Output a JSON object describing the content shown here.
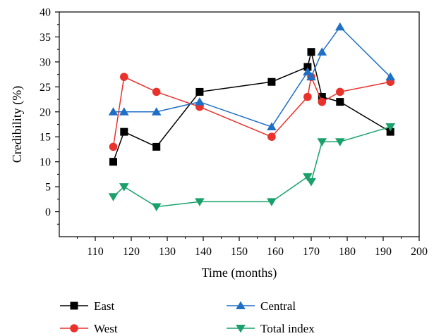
{
  "chart_data": {
    "type": "line",
    "xlabel": "Time (months)",
    "ylabel": "Credibility (%)",
    "xlim": [
      100,
      200
    ],
    "ylim": [
      -5,
      40
    ],
    "x_ticks": [
      110,
      120,
      130,
      140,
      150,
      160,
      170,
      180,
      190,
      200
    ],
    "y_ticks": [
      0,
      5,
      10,
      15,
      20,
      25,
      30,
      35,
      40
    ],
    "x_tick_labels": [
      "110",
      "120",
      "130",
      "140",
      "150",
      "160",
      "170",
      "180",
      "190",
      "200"
    ],
    "y_tick_labels": [
      "0",
      "5",
      "10",
      "15",
      "20",
      "25",
      "30",
      "35",
      "40"
    ],
    "grid": false,
    "legend_position": "below",
    "series": [
      {
        "name": "East",
        "color": "#000000",
        "marker": "square",
        "x": [
          115,
          118,
          127,
          139,
          159,
          169,
          170,
          173,
          178,
          192
        ],
        "y": [
          10,
          16,
          13,
          24,
          26,
          29,
          32,
          23,
          22,
          16
        ]
      },
      {
        "name": "West",
        "color": "#e8322b",
        "marker": "circle",
        "x": [
          115,
          118,
          127,
          139,
          159,
          169,
          170,
          173,
          178,
          192
        ],
        "y": [
          13,
          27,
          24,
          21,
          15,
          23,
          27,
          22,
          24,
          26
        ]
      },
      {
        "name": "Central",
        "color": "#1f6fc5",
        "marker": "triangle-up",
        "x": [
          115,
          118,
          127,
          139,
          159,
          169,
          170,
          173,
          178,
          192
        ],
        "y": [
          20,
          20,
          20,
          22,
          17,
          28,
          27,
          32,
          37,
          27
        ]
      },
      {
        "name": "Total index",
        "color": "#1aa16b",
        "marker": "triangle-down",
        "x": [
          115,
          118,
          127,
          139,
          159,
          169,
          170,
          173,
          178,
          192
        ],
        "y": [
          3,
          5,
          1,
          2,
          2,
          7,
          6,
          14,
          14,
          17
        ]
      }
    ]
  }
}
